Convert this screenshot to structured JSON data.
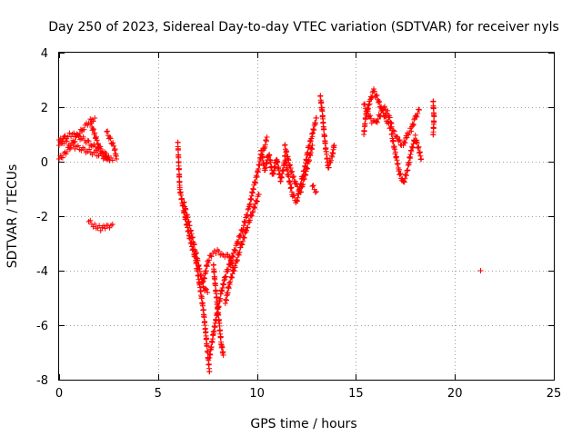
{
  "chart_data": {
    "type": "scatter",
    "title": "Day 250 of 2023, Sidereal Day-to-day VTEC variation (SDTVAR) for receiver nyls",
    "xlabel": "GPS time / hours",
    "ylabel": "SDTVAR / TECUs",
    "xlim": [
      0,
      25
    ],
    "ylim": [
      -8,
      4
    ],
    "xticks": [
      0,
      5,
      10,
      15,
      20,
      25
    ],
    "yticks": [
      -8,
      -6,
      -4,
      -2,
      0,
      2,
      4
    ],
    "xtick_labels": [
      "0",
      "5",
      "10",
      "15",
      "20",
      "25"
    ],
    "ytick_labels": [
      "-8",
      "-6",
      "-4",
      "-2",
      "0",
      "2",
      "4"
    ],
    "grid": true,
    "marker": "plus",
    "color": "#ff0000",
    "series": [
      {
        "segments": [
          [
            [
              0.0,
              0.1
            ],
            [
              0.3,
              0.3
            ],
            [
              0.6,
              0.6
            ],
            [
              0.9,
              0.9
            ],
            [
              1.2,
              1.2
            ],
            [
              1.5,
              1.45
            ],
            [
              1.8,
              1.6
            ]
          ],
          [
            [
              0.0,
              0.8
            ],
            [
              0.4,
              0.7
            ],
            [
              0.8,
              0.55
            ],
            [
              1.2,
              0.45
            ],
            [
              1.6,
              0.35
            ],
            [
              2.0,
              0.25
            ],
            [
              2.4,
              0.15
            ],
            [
              2.7,
              0.05
            ]
          ],
          [
            [
              0.0,
              0.6
            ],
            [
              0.3,
              0.9
            ],
            [
              0.6,
              1.0
            ],
            [
              0.9,
              0.95
            ],
            [
              1.3,
              0.8
            ],
            [
              1.7,
              0.6
            ],
            [
              2.1,
              0.4
            ],
            [
              2.5,
              0.2
            ]
          ],
          [
            [
              1.6,
              1.4
            ],
            [
              1.8,
              1.0
            ],
            [
              2.0,
              0.6
            ],
            [
              2.2,
              0.3
            ],
            [
              2.4,
              0.1
            ]
          ],
          [
            [
              2.4,
              1.1
            ],
            [
              2.6,
              0.8
            ],
            [
              2.8,
              0.5
            ],
            [
              2.9,
              0.1
            ]
          ],
          [
            [
              1.5,
              -2.2
            ],
            [
              1.8,
              -2.35
            ],
            [
              2.1,
              -2.45
            ],
            [
              2.4,
              -2.4
            ],
            [
              2.7,
              -2.3
            ]
          ],
          [
            [
              6.0,
              0.7
            ],
            [
              6.1,
              -1.0
            ],
            [
              6.3,
              -1.8
            ],
            [
              6.6,
              -2.8
            ],
            [
              6.9,
              -3.6
            ],
            [
              7.1,
              -4.5
            ],
            [
              7.3,
              -5.5
            ],
            [
              7.4,
              -6.2
            ],
            [
              7.5,
              -7.0
            ],
            [
              7.6,
              -7.7
            ]
          ],
          [
            [
              7.6,
              -7.2
            ],
            [
              7.8,
              -6.3
            ],
            [
              8.0,
              -5.5
            ],
            [
              8.2,
              -4.8
            ],
            [
              8.4,
              -4.2
            ],
            [
              8.7,
              -3.6
            ],
            [
              9.0,
              -3.0
            ],
            [
              9.3,
              -2.4
            ],
            [
              9.6,
              -1.7
            ],
            [
              9.8,
              -1.0
            ],
            [
              10.0,
              -0.5
            ],
            [
              10.2,
              0.2
            ],
            [
              10.4,
              0.6
            ],
            [
              10.5,
              0.9
            ]
          ],
          [
            [
              6.3,
              -1.5
            ],
            [
              6.6,
              -2.4
            ],
            [
              6.9,
              -3.3
            ],
            [
              7.1,
              -4.0
            ],
            [
              7.3,
              -4.6
            ],
            [
              7.5,
              -4.8
            ]
          ],
          [
            [
              7.3,
              -4.4
            ],
            [
              7.5,
              -3.7
            ],
            [
              7.7,
              -3.4
            ],
            [
              8.0,
              -3.3
            ],
            [
              8.3,
              -3.4
            ],
            [
              8.6,
              -3.5
            ],
            [
              8.8,
              -3.9
            ]
          ],
          [
            [
              7.8,
              -3.8
            ],
            [
              7.9,
              -4.6
            ],
            [
              8.0,
              -5.3
            ],
            [
              8.1,
              -6.0
            ],
            [
              8.2,
              -6.7
            ],
            [
              8.3,
              -7.1
            ]
          ],
          [
            [
              8.4,
              -5.2
            ],
            [
              8.6,
              -4.5
            ],
            [
              8.9,
              -3.8
            ],
            [
              9.2,
              -3.1
            ],
            [
              9.5,
              -2.4
            ],
            [
              9.8,
              -1.8
            ],
            [
              10.1,
              -1.2
            ]
          ],
          [
            [
              10.2,
              0.4
            ],
            [
              10.4,
              -0.3
            ],
            [
              10.6,
              0.3
            ],
            [
              10.8,
              -0.5
            ],
            [
              11.0,
              0.1
            ],
            [
              11.2,
              -0.7
            ],
            [
              11.4,
              0.0
            ]
          ],
          [
            [
              11.4,
              0.2
            ],
            [
              11.6,
              -0.6
            ],
            [
              11.8,
              -1.2
            ],
            [
              12.0,
              -1.5
            ],
            [
              12.2,
              -0.8
            ],
            [
              12.4,
              -0.3
            ],
            [
              12.6,
              0.5
            ],
            [
              12.8,
              1.0
            ],
            [
              13.0,
              1.6
            ]
          ],
          [
            [
              11.4,
              0.6
            ],
            [
              11.6,
              0.0
            ],
            [
              11.8,
              -0.5
            ],
            [
              12.0,
              -0.9
            ],
            [
              12.2,
              -1.1
            ],
            [
              12.4,
              -0.6
            ],
            [
              12.6,
              0.0
            ],
            [
              12.8,
              0.6
            ]
          ],
          [
            [
              12.8,
              -0.9
            ],
            [
              13.0,
              -1.1
            ]
          ],
          [
            [
              13.2,
              2.4
            ],
            [
              13.3,
              1.8
            ],
            [
              13.4,
              1.0
            ],
            [
              13.5,
              0.3
            ],
            [
              13.6,
              -0.2
            ],
            [
              13.8,
              0.2
            ],
            [
              13.9,
              0.6
            ]
          ],
          [
            [
              15.4,
              1.0
            ],
            [
              15.5,
              1.7
            ],
            [
              15.7,
              2.2
            ],
            [
              15.9,
              2.6
            ],
            [
              16.1,
              2.3
            ],
            [
              16.3,
              1.9
            ],
            [
              16.5,
              1.6
            ],
            [
              16.7,
              1.3
            ],
            [
              16.9,
              1.1
            ],
            [
              17.1,
              0.9
            ],
            [
              17.3,
              0.6
            ]
          ],
          [
            [
              15.4,
              2.1
            ],
            [
              15.6,
              1.8
            ],
            [
              15.8,
              1.5
            ],
            [
              16.0,
              1.4
            ],
            [
              16.2,
              1.7
            ],
            [
              16.4,
              2.0
            ],
            [
              16.6,
              1.8
            ],
            [
              16.8,
              1.4
            ]
          ],
          [
            [
              16.8,
              1.0
            ],
            [
              17.0,
              0.3
            ],
            [
              17.2,
              -0.4
            ],
            [
              17.4,
              -0.8
            ],
            [
              17.6,
              -0.3
            ],
            [
              17.8,
              0.4
            ],
            [
              18.0,
              0.9
            ],
            [
              18.2,
              0.4
            ],
            [
              18.3,
              0.1
            ]
          ],
          [
            [
              17.4,
              0.6
            ],
            [
              17.6,
              1.0
            ],
            [
              17.8,
              1.2
            ],
            [
              18.0,
              1.6
            ],
            [
              18.2,
              1.9
            ]
          ],
          [
            [
              18.9,
              2.2
            ],
            [
              18.95,
              1.6
            ],
            [
              18.9,
              1.0
            ]
          ],
          [
            [
              21.3,
              -4.0
            ]
          ]
        ]
      }
    ]
  }
}
